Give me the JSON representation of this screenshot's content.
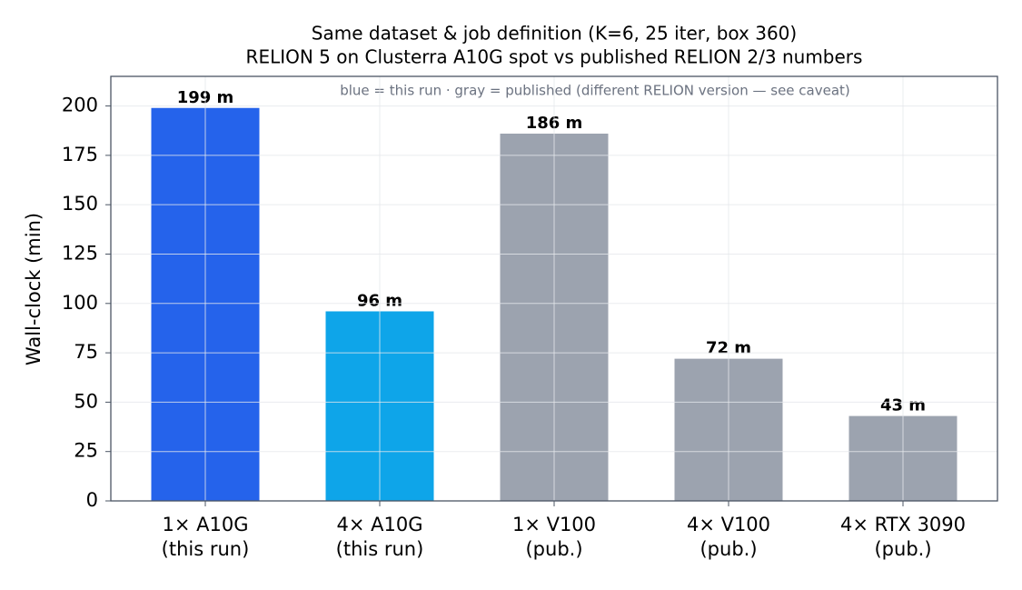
{
  "chart_data": {
    "type": "bar",
    "title": [
      "Same dataset & job definition (K=6, 25 iter, box 360)",
      "RELION 5 on Clusterra A10G spot vs published RELION 2/3 numbers"
    ],
    "annotation": "blue = this run · gray = published (different RELION version — see caveat)",
    "ylabel": "Wall-clock (min)",
    "categories": [
      [
        "1× A10G",
        "(this run)"
      ],
      [
        "4× A10G",
        "(this run)"
      ],
      [
        "1× V100",
        "(pub.)"
      ],
      [
        "4× V100",
        "(pub.)"
      ],
      [
        "4× RTX 3090",
        "(pub.)"
      ]
    ],
    "values": [
      199,
      96,
      186,
      72,
      43
    ],
    "value_labels": [
      "199 m",
      "96 m",
      "186 m",
      "72 m",
      "43 m"
    ],
    "colors": [
      "#2563eb",
      "#0ea5e9",
      "#9ca3af",
      "#9ca3af",
      "#9ca3af"
    ],
    "ylim": [
      0,
      215
    ],
    "yticks": [
      0,
      25,
      50,
      75,
      100,
      125,
      150,
      175,
      200
    ],
    "grid": true
  }
}
